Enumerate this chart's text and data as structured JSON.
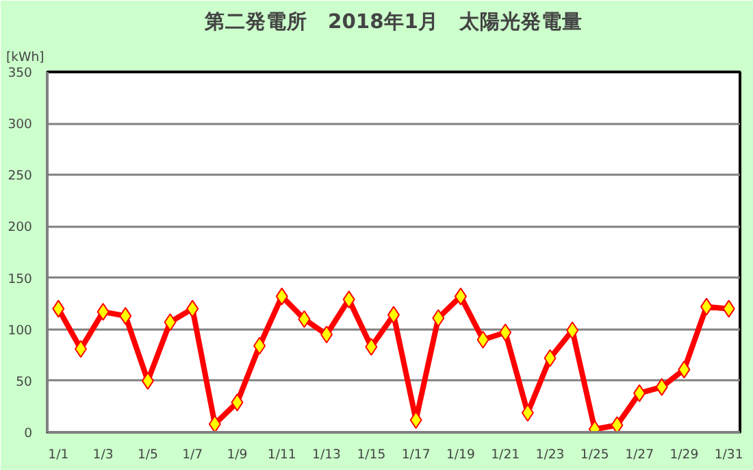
{
  "chart_data": {
    "type": "line",
    "title": "第二発電所　2018年1月　太陽光発電量",
    "ylabel": "[kWh]",
    "categories": [
      "1/1",
      null,
      "1/3",
      null,
      "1/5",
      null,
      "1/7",
      null,
      "1/9",
      null,
      "1/11",
      null,
      "1/13",
      null,
      "1/15",
      null,
      "1/17",
      null,
      "1/19",
      null,
      "1/21",
      null,
      "1/23",
      null,
      "1/25",
      null,
      "1/27",
      null,
      "1/29",
      null,
      "1/31"
    ],
    "series": [
      {
        "color": "#ff0000",
        "values": [
          120,
          81,
          117,
          113,
          50,
          107,
          120,
          8,
          29,
          84,
          132,
          110,
          95,
          129,
          83,
          114,
          12,
          111,
          132,
          90,
          97,
          19,
          72,
          99,
          3,
          7,
          38,
          44,
          61,
          122,
          120
        ]
      }
    ],
    "ylim": [
      0,
      350
    ],
    "yticks": [
      0,
      50,
      100,
      150,
      200,
      250,
      300,
      350
    ],
    "grid": "y",
    "marker": "diamond",
    "line_style": "solid"
  }
}
